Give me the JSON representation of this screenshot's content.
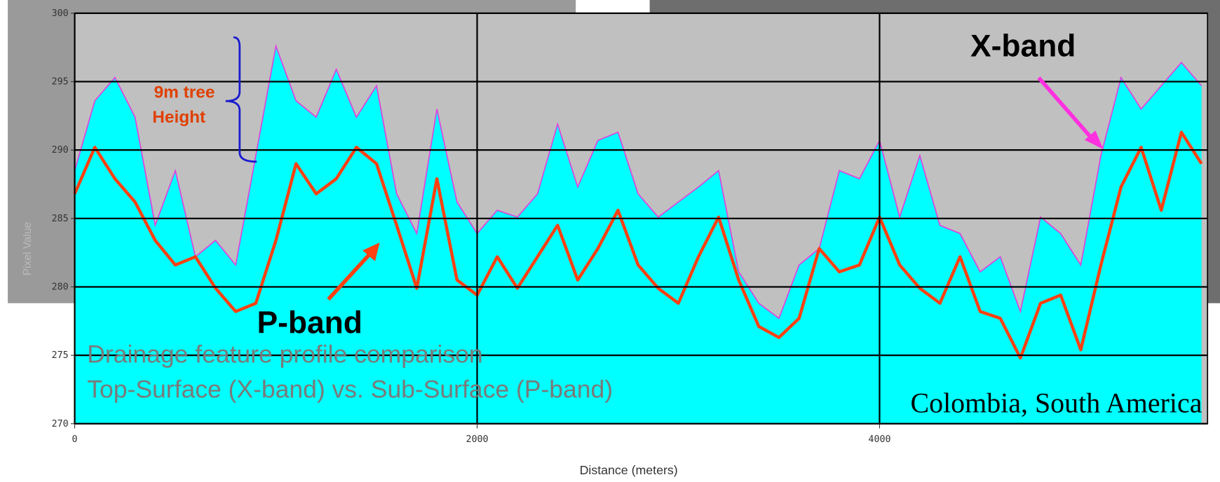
{
  "chart_data": {
    "type": "area_line",
    "x_label": "Distance (meters)",
    "y_label": "Pixel Value",
    "x": [
      0,
      100,
      200,
      300,
      400,
      500,
      600,
      700,
      800,
      900,
      1000,
      1100,
      1200,
      1300,
      1400,
      1500,
      1600,
      1700,
      1800,
      1900,
      2000,
      2100,
      2200,
      2300,
      2400,
      2500,
      2600,
      2700,
      2800,
      2900,
      3000,
      3100,
      3200,
      3300,
      3400,
      3500,
      3600,
      3700,
      3800,
      3900,
      4000,
      4100,
      4200,
      4300,
      4400,
      4500,
      4600,
      4700,
      4800,
      4900,
      5000,
      5100,
      5200,
      5300,
      5400,
      5500,
      5600
    ],
    "series": [
      {
        "name": "X-band",
        "color": "#00ffff",
        "edge_color": "#e040e0",
        "fill": true,
        "values": [
          288.5,
          293.6,
          295.3,
          292.4,
          284.5,
          288.5,
          282.2,
          283.4,
          281.6,
          289.6,
          297.6,
          293.6,
          292.4,
          295.9,
          292.4,
          294.7,
          286.8,
          283.9,
          293.0,
          286.2,
          283.9,
          285.6,
          285.1,
          286.8,
          291.9,
          287.3,
          290.7,
          291.3,
          286.8,
          285.1,
          286.2,
          287.3,
          288.5,
          281.1,
          278.8,
          277.7,
          281.6,
          282.8,
          288.5,
          287.9,
          290.7,
          285.1,
          289.6,
          284.5,
          283.9,
          281.1,
          282.2,
          278.2,
          285.1,
          283.9,
          281.6,
          289.6,
          295.3,
          293.0,
          294.7,
          296.4,
          294.7
        ]
      },
      {
        "name": "P-band",
        "color": "#ff4010",
        "fill": false,
        "values": [
          286.8,
          290.2,
          287.9,
          286.2,
          283.4,
          281.6,
          282.2,
          279.9,
          278.2,
          278.8,
          283.4,
          289.0,
          286.8,
          287.9,
          290.2,
          289.0,
          284.5,
          279.9,
          287.9,
          280.5,
          279.4,
          282.2,
          279.9,
          282.2,
          284.5,
          280.5,
          282.8,
          285.6,
          281.6,
          279.9,
          278.8,
          282.2,
          285.1,
          280.5,
          277.1,
          276.3,
          277.7,
          282.8,
          281.1,
          281.6,
          285.1,
          281.6,
          279.9,
          278.8,
          282.2,
          278.2,
          277.7,
          274.8,
          278.8,
          279.4,
          275.4,
          281.6,
          287.3,
          290.2,
          285.6,
          291.3,
          289.0
        ]
      }
    ],
    "xlim": [
      0,
      5630
    ],
    "xticks": [
      0,
      2000,
      4000
    ],
    "ylim": [
      270,
      300
    ],
    "yticks": [
      270,
      275,
      280,
      285,
      290,
      295,
      300
    ],
    "grid": true,
    "tree_height_note": [
      "9m tree",
      "Height"
    ],
    "caption": [
      "Drainage feature profile comparison",
      "Top-Surface (X-band) vs. Sub-Surface (P-band)"
    ],
    "location": "Colombia, South America"
  }
}
